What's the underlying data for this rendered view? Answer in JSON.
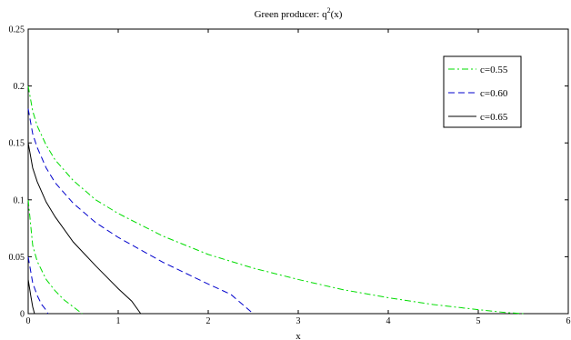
{
  "chart_data": {
    "type": "line",
    "title_prefix": "Green producer: q",
    "title_sup": "2",
    "title_suffix": "(x)",
    "xlabel": "x",
    "ylabel": "",
    "xlim": [
      0,
      6
    ],
    "ylim": [
      0,
      0.25
    ],
    "xticks": [
      0,
      1,
      2,
      3,
      4,
      5,
      6
    ],
    "yticks": [
      0,
      0.05,
      0.1,
      0.15,
      0.2,
      0.25
    ],
    "xtick_labels": [
      "0",
      "1",
      "2",
      "3",
      "4",
      "5",
      "6"
    ],
    "ytick_labels": [
      "0",
      "0.05",
      "0.1",
      "0.15",
      "0.2",
      "0.25"
    ],
    "grid": false,
    "legend_position": "top-right",
    "series": [
      {
        "name": "c=0.55",
        "color": "#00dd00",
        "dash": "dash-dot",
        "segments": [
          [
            [
              0,
              0.2
            ],
            [
              0.05,
              0.178
            ],
            [
              0.1,
              0.165
            ],
            [
              0.2,
              0.148
            ],
            [
              0.3,
              0.135
            ],
            [
              0.5,
              0.117
            ],
            [
              0.75,
              0.1
            ],
            [
              1.0,
              0.088
            ],
            [
              1.5,
              0.068
            ],
            [
              2.0,
              0.052
            ],
            [
              2.5,
              0.04
            ],
            [
              3.0,
              0.03
            ],
            [
              3.5,
              0.021
            ],
            [
              4.0,
              0.014
            ],
            [
              4.5,
              0.008
            ],
            [
              5.0,
              0.0035
            ],
            [
              5.3,
              0.001
            ],
            [
              5.5,
              0.0
            ]
          ],
          [
            [
              0,
              0.1
            ],
            [
              0.05,
              0.06
            ],
            [
              0.1,
              0.046
            ],
            [
              0.2,
              0.03
            ],
            [
              0.3,
              0.02
            ],
            [
              0.4,
              0.012
            ],
            [
              0.5,
              0.006
            ],
            [
              0.6,
              0.0
            ]
          ]
        ]
      },
      {
        "name": "c=0.60",
        "color": "#0000cc",
        "dash": "dash",
        "segments": [
          [
            [
              0,
              0.18
            ],
            [
              0.05,
              0.158
            ],
            [
              0.1,
              0.146
            ],
            [
              0.2,
              0.128
            ],
            [
              0.3,
              0.115
            ],
            [
              0.5,
              0.097
            ],
            [
              0.75,
              0.08
            ],
            [
              1.0,
              0.067
            ],
            [
              1.5,
              0.045
            ],
            [
              2.0,
              0.026
            ],
            [
              2.25,
              0.017
            ],
            [
              2.5,
              0.0
            ]
          ],
          [
            [
              0,
              0.05
            ],
            [
              0.05,
              0.027
            ],
            [
              0.1,
              0.016
            ],
            [
              0.15,
              0.008
            ],
            [
              0.2,
              0.003
            ],
            [
              0.22,
              0.0
            ]
          ]
        ]
      },
      {
        "name": "c=0.65",
        "color": "#000000",
        "dash": "solid",
        "segments": [
          [
            [
              0,
              0.15
            ],
            [
              0.05,
              0.128
            ],
            [
              0.1,
              0.116
            ],
            [
              0.2,
              0.098
            ],
            [
              0.3,
              0.085
            ],
            [
              0.5,
              0.063
            ],
            [
              0.75,
              0.042
            ],
            [
              1.0,
              0.022
            ],
            [
              1.15,
              0.011
            ],
            [
              1.25,
              0.0
            ]
          ],
          [
            [
              0,
              0.03
            ],
            [
              0.03,
              0.015
            ],
            [
              0.05,
              0.006
            ],
            [
              0.07,
              0.0
            ]
          ]
        ]
      }
    ]
  }
}
